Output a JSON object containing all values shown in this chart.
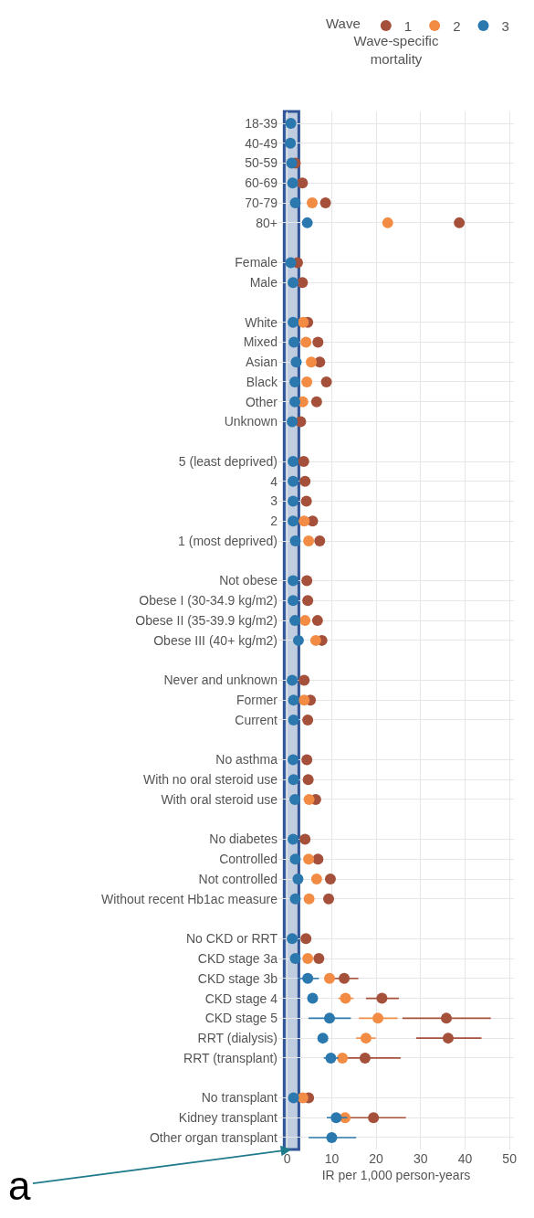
{
  "chart_data": {
    "type": "scatter",
    "orientation": "horizontal",
    "title": "Wave-specific mortality",
    "xlabel": "IR per 1,000 person-years",
    "legend_title": "Wave",
    "categories": [
      "18-39",
      "40-49",
      "50-59",
      "60-69",
      "70-79",
      "80+",
      null,
      "Female",
      "Male",
      null,
      "White",
      "Mixed",
      "Asian",
      "Black",
      "Other",
      "Unknown",
      null,
      "5 (least deprived)",
      "4",
      "3",
      "2",
      "1 (most deprived)",
      null,
      "Not obese",
      "Obese I (30-34.9 kg/m2)",
      "Obese II (35-39.9 kg/m2)",
      "Obese III (40+ kg/m2)",
      null,
      "Never and unknown",
      "Former",
      "Current",
      null,
      "No asthma",
      "With no oral steroid use",
      "With oral steroid use",
      null,
      "No diabetes",
      "Controlled",
      "Not controlled",
      "Without recent Hb1ac measure",
      null,
      "No CKD or RRT",
      "CKD stage 3a",
      "CKD stage 3b",
      "CKD stage 4",
      "CKD stage 5",
      "RRT (dialysis)",
      "RRT (transplant)",
      null,
      "No transplant",
      "Kidney transplant",
      "Other organ transplant"
    ],
    "series": [
      {
        "name": "1",
        "color": "#a4503a",
        "values": [
          null,
          null,
          1.8,
          3.4,
          8.6,
          38.7,
          null,
          2.3,
          3.4,
          null,
          4.6,
          6.9,
          7.3,
          8.8,
          6.6,
          3.0,
          null,
          3.7,
          4.0,
          4.3,
          5.7,
          7.3,
          null,
          4.4,
          4.6,
          6.8,
          7.8,
          null,
          3.8,
          5.2,
          4.6,
          null,
          4.4,
          4.7,
          6.4,
          null,
          4.0,
          6.9,
          9.7,
          9.3,
          null,
          4.2,
          7.1,
          12.8,
          21.3,
          35.8,
          36.2,
          17.5,
          null,
          4.8,
          19.4,
          null
        ],
        "errors": [
          null,
          null,
          null,
          null,
          null,
          null,
          null,
          null,
          null,
          null,
          null,
          null,
          null,
          null,
          null,
          null,
          null,
          null,
          null,
          null,
          null,
          null,
          null,
          null,
          null,
          null,
          null,
          null,
          null,
          null,
          null,
          null,
          null,
          null,
          null,
          null,
          null,
          null,
          null,
          null,
          null,
          null,
          null,
          [
            10.4,
            16.0
          ],
          [
            17.7,
            25.1
          ],
          [
            25.9,
            45.8
          ],
          [
            29.0,
            43.7
          ],
          [
            11.5,
            25.5
          ],
          null,
          null,
          [
            13.5,
            26.7
          ],
          null
        ]
      },
      {
        "name": "2",
        "color": "#f28c45",
        "values": [
          null,
          null,
          null,
          null,
          5.6,
          22.6,
          null,
          null,
          null,
          null,
          3.6,
          4.2,
          5.4,
          4.4,
          3.5,
          null,
          null,
          null,
          null,
          null,
          3.8,
          4.8,
          null,
          null,
          null,
          4.0,
          6.4,
          null,
          null,
          3.8,
          null,
          null,
          null,
          null,
          4.9,
          null,
          null,
          4.8,
          6.6,
          4.9,
          null,
          null,
          4.6,
          9.5,
          13.1,
          20.4,
          17.7,
          12.4,
          null,
          3.5,
          13.0,
          null
        ],
        "errors": [
          null,
          null,
          null,
          null,
          null,
          null,
          null,
          null,
          null,
          null,
          null,
          null,
          null,
          null,
          null,
          null,
          null,
          null,
          null,
          null,
          null,
          null,
          null,
          null,
          null,
          null,
          null,
          null,
          null,
          null,
          null,
          null,
          null,
          null,
          null,
          null,
          null,
          null,
          null,
          null,
          null,
          null,
          null,
          null,
          [
            11.5,
            14.9
          ],
          [
            16.1,
            24.8
          ],
          [
            15.5,
            19.9
          ],
          null,
          null,
          null,
          null,
          null
        ]
      },
      {
        "name": "3",
        "color": "#2a78ad",
        "values": [
          0.8,
          0.7,
          1.0,
          1.2,
          1.8,
          4.5,
          null,
          0.8,
          1.3,
          null,
          1.3,
          1.5,
          2.0,
          1.7,
          1.7,
          1.1,
          null,
          1.3,
          1.3,
          1.3,
          1.3,
          1.8,
          null,
          1.3,
          1.3,
          1.7,
          2.5,
          null,
          1.1,
          1.4,
          1.4,
          null,
          1.3,
          1.4,
          1.7,
          null,
          1.3,
          1.8,
          2.4,
          1.8,
          null,
          1.1,
          1.8,
          4.6,
          5.7,
          9.5,
          8.0,
          9.8,
          null,
          1.4,
          11.0,
          10.0
        ],
        "errors": [
          null,
          null,
          null,
          null,
          null,
          null,
          null,
          null,
          null,
          null,
          null,
          null,
          null,
          null,
          null,
          null,
          null,
          null,
          null,
          null,
          null,
          null,
          null,
          null,
          null,
          null,
          null,
          null,
          null,
          null,
          null,
          null,
          null,
          null,
          null,
          null,
          null,
          null,
          null,
          null,
          null,
          null,
          null,
          [
            2.4,
            7.1
          ],
          null,
          [
            4.8,
            14.3
          ],
          null,
          [
            8.2,
            11.5
          ],
          null,
          null,
          [
            8.9,
            13.5
          ],
          [
            4.8,
            15.5
          ]
        ]
      }
    ],
    "xlim": [
      -2,
      51
    ],
    "xticks": [
      0,
      10,
      20,
      30,
      40,
      50
    ],
    "bands": [
      {
        "axis": "x",
        "from": -0.7,
        "to": 2.6,
        "label": "a",
        "color": "#2f5597"
      }
    ],
    "grid": true,
    "legend": "top right",
    "marker": "circle"
  }
}
